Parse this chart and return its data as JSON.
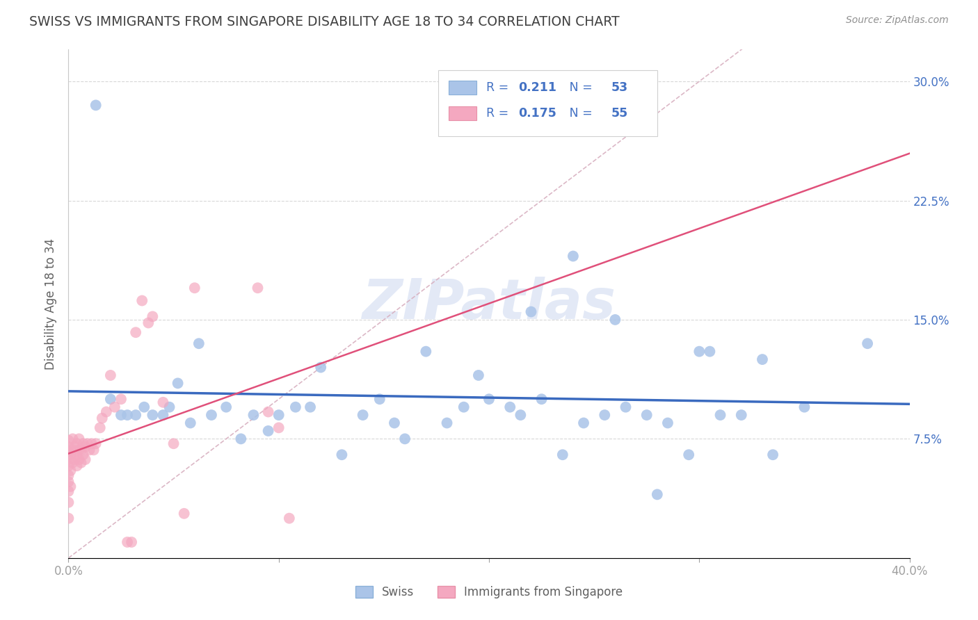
{
  "title": "SWISS VS IMMIGRANTS FROM SINGAPORE DISABILITY AGE 18 TO 34 CORRELATION CHART",
  "source": "Source: ZipAtlas.com",
  "ylabel": "Disability Age 18 to 34",
  "xlim": [
    0.0,
    0.4
  ],
  "ylim": [
    0.0,
    0.32
  ],
  "swiss_R": "0.211",
  "swiss_N": "53",
  "imm_R": "0.175",
  "imm_N": "55",
  "swiss_color": "#aac4e8",
  "imm_color": "#f4a8c0",
  "swiss_line_color": "#3a6abf",
  "imm_line_color": "#e0507a",
  "diagonal_color": "#d8b0c0",
  "background_color": "#ffffff",
  "grid_color": "#d8d8d8",
  "title_color": "#404040",
  "axis_label_color": "#606060",
  "tick_label_color": "#4472c4",
  "watermark_color": "#ccd8f0",
  "legend_text_color": "#4472c4",
  "swiss_x": [
    0.013,
    0.02,
    0.025,
    0.028,
    0.032,
    0.036,
    0.04,
    0.045,
    0.048,
    0.052,
    0.058,
    0.062,
    0.068,
    0.075,
    0.082,
    0.088,
    0.095,
    0.1,
    0.108,
    0.115,
    0.12,
    0.13,
    0.14,
    0.148,
    0.155,
    0.16,
    0.17,
    0.18,
    0.188,
    0.195,
    0.2,
    0.21,
    0.215,
    0.225,
    0.235,
    0.245,
    0.255,
    0.265,
    0.275,
    0.285,
    0.295,
    0.305,
    0.32,
    0.335,
    0.35,
    0.22,
    0.24,
    0.26,
    0.28,
    0.3,
    0.31,
    0.33,
    0.38
  ],
  "swiss_y": [
    0.285,
    0.1,
    0.09,
    0.09,
    0.09,
    0.095,
    0.09,
    0.09,
    0.095,
    0.11,
    0.085,
    0.135,
    0.09,
    0.095,
    0.075,
    0.09,
    0.08,
    0.09,
    0.095,
    0.095,
    0.12,
    0.065,
    0.09,
    0.1,
    0.085,
    0.075,
    0.13,
    0.085,
    0.095,
    0.115,
    0.1,
    0.095,
    0.09,
    0.1,
    0.065,
    0.085,
    0.09,
    0.095,
    0.09,
    0.085,
    0.065,
    0.13,
    0.09,
    0.065,
    0.095,
    0.155,
    0.19,
    0.15,
    0.04,
    0.13,
    0.09,
    0.125,
    0.135
  ],
  "imm_x": [
    0.0,
    0.0,
    0.0,
    0.0,
    0.0,
    0.0,
    0.0,
    0.0,
    0.0,
    0.0,
    0.001,
    0.001,
    0.001,
    0.002,
    0.002,
    0.002,
    0.003,
    0.003,
    0.004,
    0.004,
    0.004,
    0.005,
    0.005,
    0.005,
    0.006,
    0.006,
    0.007,
    0.007,
    0.008,
    0.008,
    0.009,
    0.01,
    0.011,
    0.012,
    0.013,
    0.015,
    0.016,
    0.018,
    0.02,
    0.022,
    0.025,
    0.028,
    0.03,
    0.032,
    0.035,
    0.038,
    0.04,
    0.045,
    0.05,
    0.055,
    0.06,
    0.09,
    0.095,
    0.1,
    0.105
  ],
  "imm_y": [
    0.025,
    0.035,
    0.042,
    0.048,
    0.052,
    0.058,
    0.062,
    0.067,
    0.07,
    0.074,
    0.045,
    0.055,
    0.065,
    0.06,
    0.068,
    0.075,
    0.062,
    0.07,
    0.058,
    0.065,
    0.072,
    0.062,
    0.068,
    0.075,
    0.06,
    0.068,
    0.065,
    0.072,
    0.062,
    0.07,
    0.072,
    0.068,
    0.072,
    0.068,
    0.072,
    0.082,
    0.088,
    0.092,
    0.115,
    0.095,
    0.1,
    0.01,
    0.01,
    0.142,
    0.162,
    0.148,
    0.152,
    0.098,
    0.072,
    0.028,
    0.17,
    0.17,
    0.092,
    0.082,
    0.025
  ]
}
